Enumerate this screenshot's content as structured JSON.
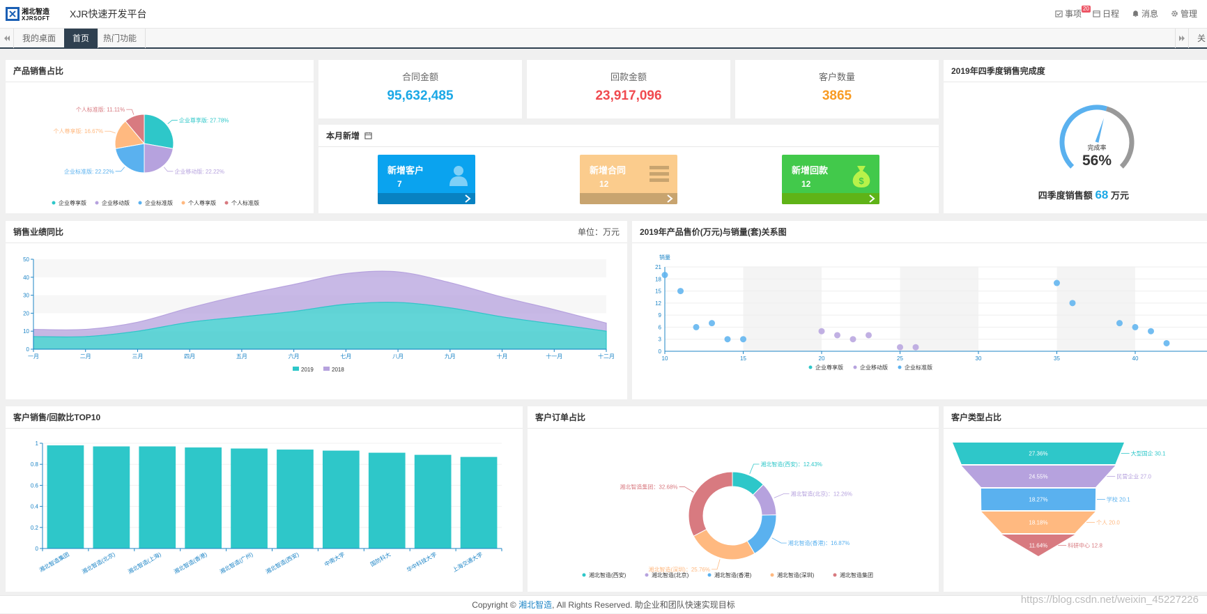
{
  "header": {
    "logo_text": "湘北智造 XJRSOFT",
    "title": "XJR快速开发平台",
    "nav": [
      {
        "label": "事项",
        "badge": "20",
        "icon": "calendar-check-icon"
      },
      {
        "label": "日程",
        "icon": "calendar-icon"
      },
      {
        "label": "消息",
        "icon": "bell-icon"
      },
      {
        "label": "管理",
        "icon": "gear-icon"
      }
    ]
  },
  "tabs": {
    "items": [
      "我的桌面",
      "首页",
      "热门功能"
    ],
    "active": "首页",
    "right_fragment": "关"
  },
  "panels": {
    "product_sales_title": "产品销售占比",
    "kpi": [
      {
        "label": "合同金额",
        "value": "95,632,485",
        "color": "#1ba8e6"
      },
      {
        "label": "回款金额",
        "value": "23,917,096",
        "color": "#f04a4f"
      },
      {
        "label": "客户数量",
        "value": "3865",
        "color": "#f89b23"
      }
    ],
    "new_this_month_title": "本月新增",
    "tiles": [
      {
        "title": "新增客户",
        "count": "7",
        "color": "#0aa3ef",
        "foot": "#0882c2",
        "icon": "user-icon"
      },
      {
        "title": "新增合同",
        "count": "12",
        "color": "#fbcc8d",
        "foot": "#c8a46f",
        "icon": "list-icon"
      },
      {
        "title": "新增回款",
        "count": "12",
        "color": "#42c94b",
        "foot": "#3c9f16",
        "icon": "money-bag-icon"
      }
    ],
    "q4_title": "2019年四季度销售完成度",
    "gauge": {
      "label": "完成率",
      "value": 56,
      "display": "56%"
    },
    "q4_sales_prefix": "四季度销售额",
    "q4_sales_value": "68",
    "q4_sales_unit": "万元",
    "sales_yoy_title": "销售业绩同比",
    "sales_yoy_unit": "单位：万元",
    "price_volume_title": "2019年产品售价(万元)与销量(套)关系图",
    "top10_title": "客户销售/回款比TOP10",
    "orders_title": "客户订单占比",
    "customer_type_title": "客户类型占比"
  },
  "footer": {
    "copyright_pre": "Copyright ©",
    "brand": "湘北智造",
    "copyright_post": ", All Rights Reserved. 助企业和团队快速实现目标"
  },
  "watermark": "https://blog.csdn.net/weixin_45227226",
  "chart_data": [
    {
      "id": "product_pie",
      "type": "pie",
      "slices": [
        {
          "name": "企业尊享版",
          "value": 27.78,
          "label": "企业尊享版: 27.78%",
          "color": "#2ec7c9"
        },
        {
          "name": "企业移动版",
          "value": 22.22,
          "label": "企业移动版: 22.22%",
          "color": "#b6a2de"
        },
        {
          "name": "企业标准版",
          "value": 22.22,
          "label": "企业标准版: 22.22%",
          "color": "#5ab1ef"
        },
        {
          "name": "个人尊享版",
          "value": 16.67,
          "label": "个人尊享版: 16.67%",
          "color": "#ffb980"
        },
        {
          "name": "个人标准版",
          "value": 11.11,
          "label": "个人标准版: 11.11%",
          "color": "#d87a80"
        }
      ],
      "legend": [
        "企业尊享版",
        "企业移动版",
        "企业标准版",
        "个人尊享版",
        "个人标准版"
      ]
    },
    {
      "id": "sales_area",
      "type": "area",
      "categories": [
        "一月",
        "二月",
        "三月",
        "四月",
        "五月",
        "六月",
        "七月",
        "八月",
        "九月",
        "十月",
        "十一月",
        "十二月"
      ],
      "ylim": [
        0,
        50
      ],
      "yticks": [
        0,
        10,
        20,
        30,
        40,
        50
      ],
      "stacked": true,
      "series": [
        {
          "name": "2019",
          "color": "#2ec7c9",
          "values": [
            7,
            7,
            10,
            15,
            18,
            21,
            25,
            26,
            23,
            18,
            14,
            10
          ]
        },
        {
          "name": "2018",
          "color": "#b6a2de",
          "values": [
            4,
            4,
            5,
            8,
            12,
            15,
            17,
            17,
            14,
            11,
            8,
            4.5
          ]
        }
      ],
      "legend": [
        "2019",
        "2018"
      ]
    },
    {
      "id": "price_scatter",
      "type": "scatter",
      "ylabel": "销量",
      "xlim": [
        10,
        45
      ],
      "ylim": [
        0,
        21
      ],
      "xticks": [
        10,
        15,
        20,
        25,
        30,
        35,
        40
      ],
      "yticks": [
        0,
        3,
        6,
        9,
        12,
        15,
        18,
        21
      ],
      "points": [
        [
          10,
          19
        ],
        [
          11,
          15
        ],
        [
          12,
          6
        ],
        [
          13,
          7
        ],
        [
          14,
          3
        ],
        [
          15,
          3
        ],
        [
          20,
          5
        ],
        [
          21,
          4
        ],
        [
          22,
          3
        ],
        [
          23,
          4
        ],
        [
          25,
          1
        ],
        [
          26,
          1
        ],
        [
          35,
          17
        ],
        [
          36,
          12
        ],
        [
          39,
          7
        ],
        [
          40,
          6
        ],
        [
          41,
          5
        ],
        [
          42,
          2
        ]
      ],
      "point_color": "#5ab1ef",
      "legend": [
        "企业尊享版",
        "企业移动版",
        "企业标准版"
      ],
      "legend_colors": [
        "#2ec7c9",
        "#b6a2de",
        "#5ab1ef"
      ]
    },
    {
      "id": "top10_bar",
      "type": "bar",
      "categories": [
        "湘北智造集团",
        "湘北智造(北京)",
        "湘北智造(上海)",
        "湘北智造(香港)",
        "湘北智造(广州)",
        "湘北智造(西安)",
        "中南大学",
        "国防科大",
        "华中科技大学",
        "上海交通大学"
      ],
      "values": [
        0.98,
        0.97,
        0.97,
        0.96,
        0.95,
        0.94,
        0.93,
        0.91,
        0.89,
        0.87
      ],
      "ylim": [
        0,
        1
      ],
      "yticks": [
        0,
        0.2,
        0.4,
        0.6,
        0.8,
        1
      ],
      "color": "#2ec7c9"
    },
    {
      "id": "orders_donut",
      "type": "pie",
      "slices": [
        {
          "name": "湘北智造(西安)",
          "value": 12.43,
          "label": "湘北智造(西安)：12.43%",
          "color": "#2ec7c9"
        },
        {
          "name": "湘北智造(北京)",
          "value": 12.26,
          "label": "湘北智造(北京)：12.26%",
          "color": "#b6a2de"
        },
        {
          "name": "湘北智造(香港)",
          "value": 16.87,
          "label": "湘北智造(香港)：16.87%",
          "color": "#5ab1ef"
        },
        {
          "name": "湘北智造(深圳)",
          "value": 25.76,
          "label": "湘北智造(深圳)：25.76%",
          "color": "#ffb980"
        },
        {
          "name": "湘北智造集团",
          "value": 32.68,
          "label": "湘北智造集团：32.68%",
          "color": "#d87a80"
        }
      ],
      "legend": [
        "湘北智造(西安)",
        "湘北智造(北京)",
        "湘北智造(香港)",
        "湘北智造(深圳)",
        "湘北智造集团"
      ]
    },
    {
      "id": "customer_funnel",
      "type": "funnel",
      "stages": [
        {
          "name": "大型国企",
          "value": 30.1,
          "percent": "27.36%",
          "label": "大型国企 30.1",
          "color": "#2ec7c9"
        },
        {
          "name": "民营企业",
          "value": 27.0,
          "percent": "24.55%",
          "label": "民营企业 27.0",
          "color": "#b6a2de"
        },
        {
          "name": "学校",
          "value": 20.1,
          "percent": "18.27%",
          "label": "学校 20.1",
          "color": "#5ab1ef"
        },
        {
          "name": "个人",
          "value": 20.0,
          "percent": "18.18%",
          "label": "个人 20.0",
          "color": "#ffb980"
        },
        {
          "name": "科研中心",
          "value": 12.8,
          "percent": "11.64%",
          "label": "科研中心 12.8",
          "color": "#d87a80"
        }
      ]
    }
  ]
}
